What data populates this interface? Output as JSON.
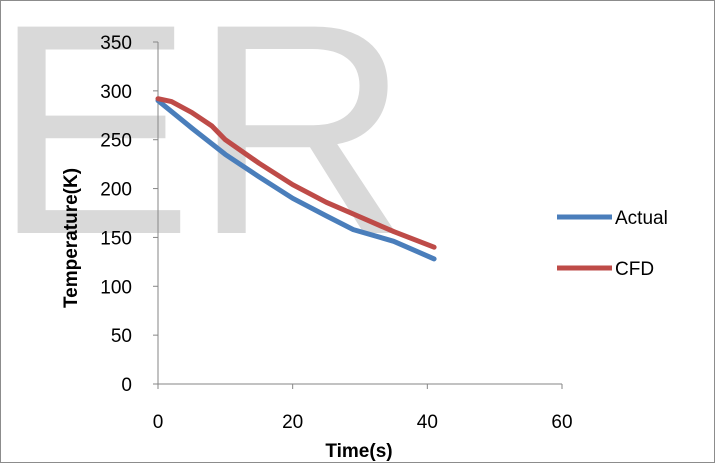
{
  "watermark": "ER",
  "chart_data": {
    "type": "line",
    "title": "",
    "xlabel": "Time(s)",
    "ylabel": "Temperature(K)",
    "xlim": [
      0,
      60
    ],
    "ylim": [
      0,
      350
    ],
    "xticks": [
      0,
      20,
      40,
      60
    ],
    "yticks": [
      0,
      50,
      100,
      150,
      200,
      250,
      300,
      350
    ],
    "grid": false,
    "legend_position": "right",
    "series": [
      {
        "name": "Actual",
        "color": "#4a7ebb",
        "x": [
          0,
          5,
          10,
          15,
          20,
          25,
          29,
          35,
          41
        ],
        "y": [
          290,
          262,
          235,
          212,
          190,
          172,
          158,
          146,
          128
        ]
      },
      {
        "name": "CFD",
        "color": "#be4b48",
        "x": [
          0,
          2,
          5,
          8,
          10,
          15,
          20,
          25,
          29,
          35,
          41
        ],
        "y": [
          292,
          289,
          278,
          264,
          250,
          226,
          204,
          186,
          174,
          156,
          140
        ]
      }
    ]
  }
}
